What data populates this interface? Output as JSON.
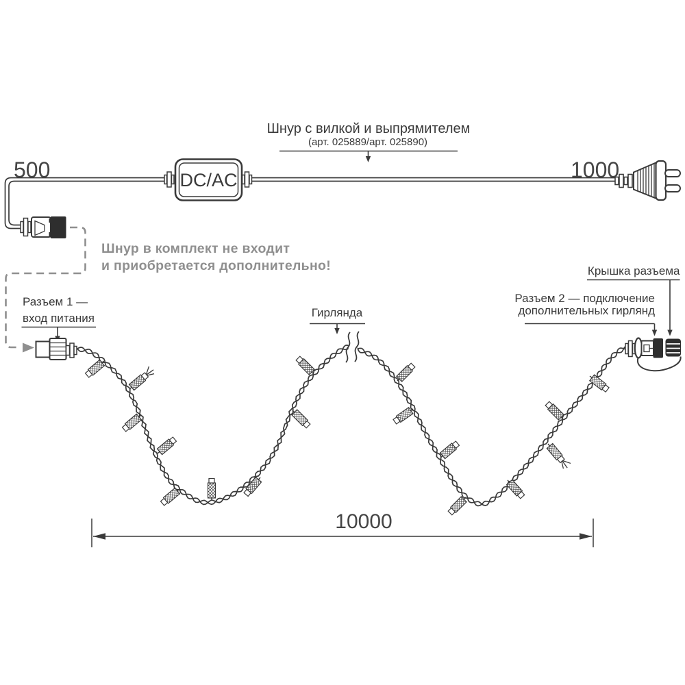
{
  "colors": {
    "ink": "#3a3a3a",
    "line": "#454545",
    "gray": "#8f8f8f",
    "black_fill": "#2e2e2e",
    "background": "#ffffff"
  },
  "cord": {
    "length_left": "500",
    "length_right": "1000",
    "converter_label": "DC/AC",
    "callout_title": "Шнур с вилкой и выпрямителем",
    "callout_subtitle": "(арт. 025889/арт. 025890)"
  },
  "note": {
    "line1": "Шнур в комплект не входит",
    "line2": "и приобретается дополнительно!"
  },
  "connector1": {
    "line1": "Разъем 1 —",
    "line2": "вход питания"
  },
  "garland": {
    "label": "Гирлянда",
    "length": "10000"
  },
  "connector2": {
    "line1": "Разъем 2 — подключение",
    "line2": "дополнительных гирлянд"
  },
  "cap": {
    "label": "Крышка разъема"
  }
}
